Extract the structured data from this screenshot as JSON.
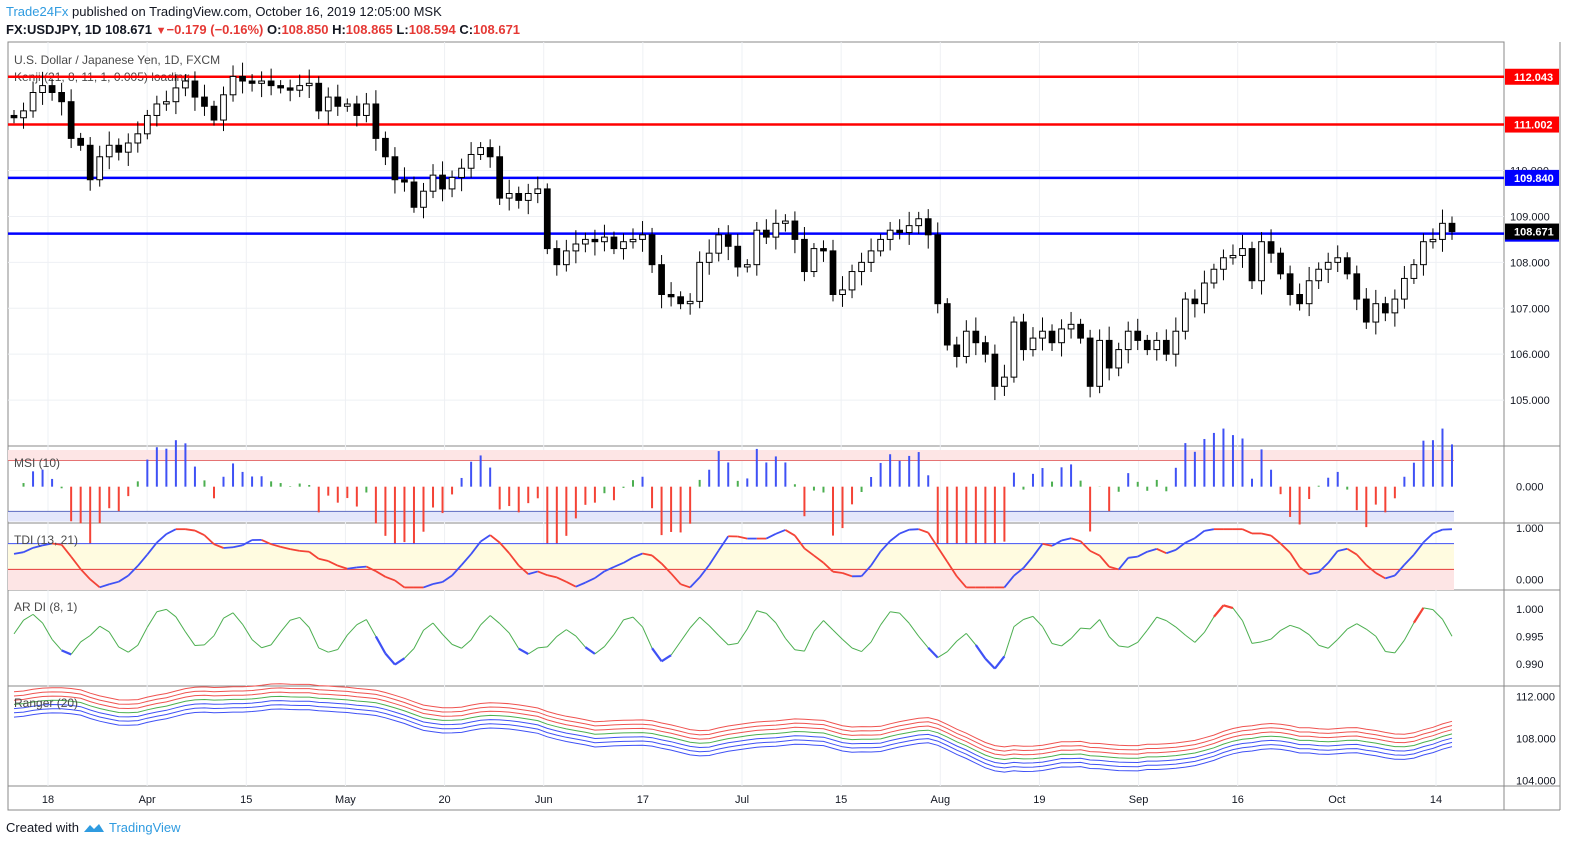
{
  "header": {
    "brand": "Trade24Fx",
    "published": " published on TradingView.com, October 16, 2019 12:05:00 MSK"
  },
  "ohlc": {
    "symbol": "FX:USDJPY, 1D",
    "last": "108.671",
    "change": "−0.179 (−0.16%)",
    "o_label": "O:",
    "o": "108.850",
    "h_label": "H:",
    "h": "108.865",
    "l_label": "L:",
    "l": "108.594",
    "c_label": "C:",
    "c": "108.671"
  },
  "footer": {
    "created_with": "Created with",
    "brand": "TradingView"
  },
  "colors": {
    "up_candle": "#ffffff",
    "down_candle": "#000000",
    "red_line": "#ff0000",
    "blue_line": "#0000ff",
    "ind_green": "#4caf50",
    "ind_red": "#f44336",
    "ind_blue": "#3f51f5"
  },
  "chart_data": {
    "type": "candlestick",
    "title": "U.S. Dollar / Japanese Yen, 1D, FXCM",
    "study": "Kenji (21, 8, 11, 1, 0.005) loading",
    "x_ticks": [
      "18",
      "Apr",
      "15",
      "May",
      "20",
      "Jun",
      "17",
      "Jul",
      "15",
      "Aug",
      "19",
      "Sep",
      "16",
      "Oct",
      "14"
    ],
    "y_ticks": [
      "105.000",
      "106.000",
      "107.000",
      "108.000",
      "109.000",
      "110.000"
    ],
    "ylim": [
      104.0,
      112.8
    ],
    "horizontal_levels": [
      {
        "value": 112.043,
        "label": "112.043",
        "color": "#ff0000"
      },
      {
        "value": 111.002,
        "label": "111.002",
        "color": "#ff0000"
      },
      {
        "value": 109.84,
        "label": "109.840",
        "color": "#0000ff"
      },
      {
        "value": 108.625,
        "label": "108.625",
        "color": "#0000ff"
      }
    ],
    "last_price": {
      "value": 108.671,
      "label": "108.671"
    },
    "closes": [
      111.15,
      111.3,
      111.7,
      111.85,
      111.7,
      111.5,
      110.7,
      110.55,
      109.8,
      110.3,
      110.55,
      110.4,
      110.6,
      110.8,
      111.2,
      111.45,
      111.5,
      111.8,
      111.95,
      111.6,
      111.4,
      111.1,
      111.65,
      112.05,
      111.95,
      111.9,
      111.95,
      111.85,
      111.8,
      111.75,
      111.85,
      111.9,
      111.3,
      111.6,
      111.4,
      111.45,
      111.2,
      111.45,
      110.7,
      110.3,
      109.8,
      109.75,
      109.2,
      109.55,
      109.9,
      109.6,
      109.85,
      110.05,
      110.35,
      110.5,
      110.3,
      109.4,
      109.5,
      109.35,
      109.5,
      109.6,
      108.3,
      107.95,
      108.25,
      108.4,
      108.5,
      108.45,
      108.55,
      108.3,
      108.45,
      108.5,
      108.6,
      107.95,
      107.3,
      107.25,
      107.1,
      107.15,
      108.0,
      108.2,
      108.6,
      108.35,
      107.9,
      107.95,
      108.7,
      108.55,
      108.85,
      108.9,
      108.5,
      107.8,
      108.3,
      108.25,
      107.3,
      107.4,
      107.8,
      108.0,
      108.25,
      108.5,
      108.7,
      108.65,
      108.8,
      108.95,
      108.6,
      107.1,
      106.2,
      105.95,
      106.5,
      106.25,
      106.0,
      105.3,
      105.5,
      106.7,
      106.1,
      106.35,
      106.5,
      106.25,
      106.55,
      106.65,
      106.35,
      105.3,
      106.3,
      105.7,
      106.1,
      106.5,
      106.3,
      106.1,
      106.3,
      106.0,
      106.5,
      107.2,
      107.1,
      107.55,
      107.85,
      108.1,
      108.15,
      108.3,
      107.6,
      108.45,
      108.2,
      107.75,
      107.3,
      107.1,
      107.6,
      107.85,
      108.0,
      108.1,
      107.75,
      107.2,
      106.7,
      107.1,
      106.9,
      107.2,
      107.65,
      107.95,
      108.45,
      108.5,
      108.85,
      108.67
    ],
    "series": [
      {
        "name": "MSI (10)",
        "ylim": [
          -0.0025,
          0.0028
        ],
        "y_ticks": [
          "0.000"
        ]
      },
      {
        "name": "TDI (13, 21)",
        "ylim": [
          -0.2,
          1.1
        ],
        "y_ticks": [
          "1.000",
          "0.000"
        ]
      },
      {
        "name": "AR DI (8, 1)",
        "ylim": [
          0.986,
          1.0035
        ],
        "y_ticks": [
          "1.000",
          "0.995",
          "0.990"
        ]
      },
      {
        "name": "Ranger (20)",
        "ylim": [
          103.5,
          113.0
        ],
        "y_ticks": [
          "112.000",
          "108.000",
          "104.000"
        ]
      }
    ]
  }
}
